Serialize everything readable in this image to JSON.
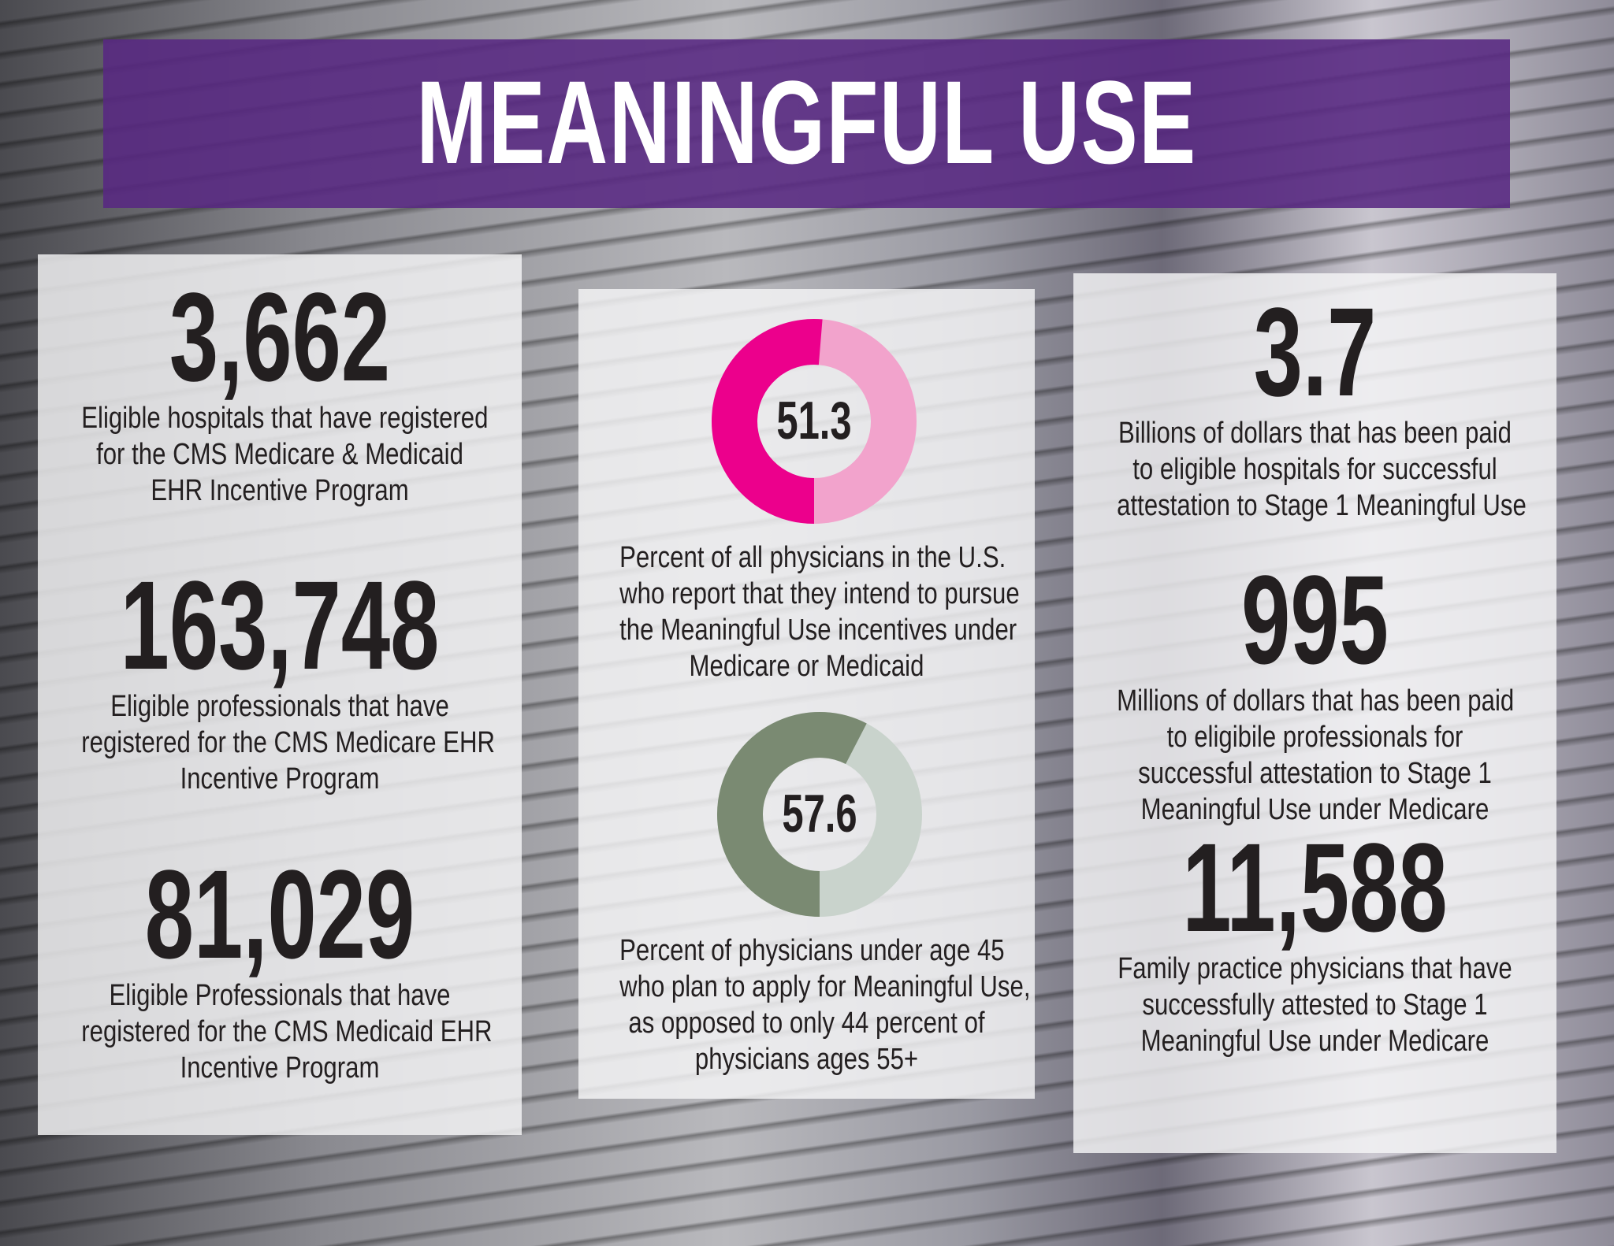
{
  "title": "MEANINGFUL USE",
  "left_panel": [
    {
      "value": "3,662",
      "lines": [
        "Eligible hospitals that have registered",
        "for the CMS Medicare & Medicaid",
        "EHR Incentive Program"
      ]
    },
    {
      "value": "163,748",
      "lines": [
        "Eligible professionals that have",
        "registered for the CMS Medicare EHR",
        "Incentive Program"
      ]
    },
    {
      "value": "81,029",
      "lines": [
        "Eligible Professionals that have",
        "registered for the CMS Medicaid EHR",
        "Incentive Program"
      ]
    }
  ],
  "middle_panel": [
    {
      "value": "51.3",
      "percent": 51.3,
      "color": "#ec008c",
      "rest_color": "#f2a3cc",
      "lines": [
        "Percent of all physicians in the U.S.",
        "who report that they intend to pursue",
        "the Meaningful Use incentives under",
        "Medicare or Medicaid"
      ]
    },
    {
      "value": "57.6",
      "percent": 57.6,
      "color": "#7a8a72",
      "rest_color": "#c9d3cc",
      "lines": [
        "Percent of physicians under age 45",
        "who plan to apply for Meaningful Use,",
        "as opposed to only 44 percent of",
        "physicians ages 55+"
      ]
    }
  ],
  "right_panel": [
    {
      "value": "3.7",
      "lines": [
        "Billions of dollars that has been paid",
        "to eligible hospitals for successful",
        "attestation to Stage 1 Meaningful Use"
      ]
    },
    {
      "value": "995",
      "lines": [
        "Millions of dollars that has been paid",
        "to eligibile professionals for",
        "successful attestation to Stage 1",
        "Meaningful Use under Medicare"
      ]
    },
    {
      "value": "11,588",
      "lines": [
        "Family practice physicians that have",
        "successfully attested to Stage 1",
        "Meaningful Use under Medicare"
      ]
    }
  ],
  "colors": {
    "banner": "#582882"
  }
}
